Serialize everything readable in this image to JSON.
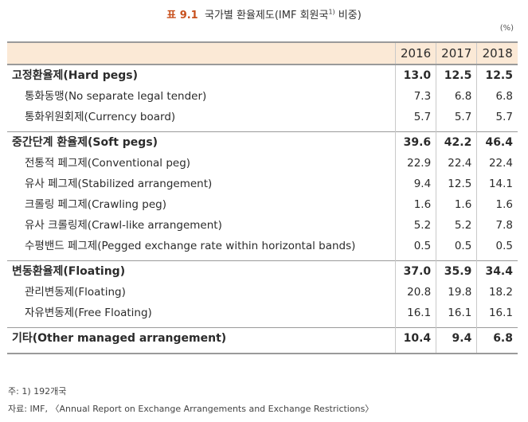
{
  "title": {
    "number": "표 9.1",
    "text": "국가별 환율제도(IMF 회원국",
    "sup": "1)",
    "suffix": " 비중)"
  },
  "unit": "(%)",
  "header": {
    "label": "",
    "years": [
      "2016",
      "2017",
      "2018"
    ]
  },
  "groups": [
    {
      "label": "고정환율제(Hard pegs)",
      "values": [
        "13.0",
        "12.5",
        "12.5"
      ],
      "items": [
        {
          "label": "통화동맹(No separate legal tender)",
          "values": [
            "7.3",
            "6.8",
            "6.8"
          ]
        },
        {
          "label": "통화위원회제(Currency board)",
          "values": [
            "5.7",
            "5.7",
            "5.7"
          ]
        }
      ]
    },
    {
      "label": "중간단계 환율제(Soft pegs)",
      "values": [
        "39.6",
        "42.2",
        "46.4"
      ],
      "items": [
        {
          "label": "전통적 페그제(Conventional peg)",
          "values": [
            "22.9",
            "22.4",
            "22.4"
          ]
        },
        {
          "label": "유사 페그제(Stabilized arrangement)",
          "values": [
            "9.4",
            "12.5",
            "14.1"
          ]
        },
        {
          "label": "크롤링 페그제(Crawling peg)",
          "values": [
            "1.6",
            "1.6",
            "1.6"
          ]
        },
        {
          "label": "유사 크롤링제(Crawl-like arrangement)",
          "values": [
            "5.2",
            "5.2",
            "7.8"
          ]
        },
        {
          "label": "수평밴드 페그제(Pegged exchange rate within horizontal bands)",
          "values": [
            "0.5",
            "0.5",
            "0.5"
          ]
        }
      ]
    },
    {
      "label": "변동환율제(Floating)",
      "values": [
        "37.0",
        "35.9",
        "34.4"
      ],
      "items": [
        {
          "label": "관리변동제(Floating)",
          "values": [
            "20.8",
            "19.8",
            "18.2"
          ]
        },
        {
          "label": "자유변동제(Free Floating)",
          "values": [
            "16.1",
            "16.1",
            "16.1"
          ]
        }
      ]
    },
    {
      "label": "기타(Other managed arrangement)",
      "values": [
        "10.4",
        "9.4",
        "6.8"
      ],
      "items": []
    }
  ],
  "notes": {
    "note": "주: 1) 192개국",
    "source": "자료: IMF, 〈Annual Report on Exchange Arrangements and Exchange Restrictions〉"
  }
}
